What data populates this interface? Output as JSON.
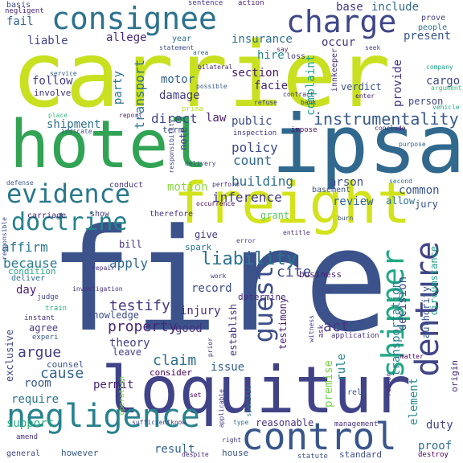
{
  "words": [
    {
      "text": "carrier",
      "color": "#c8e020"
    },
    {
      "text": "fire",
      "color": "#3b528b"
    },
    {
      "text": "hotel",
      "color": "#31a354"
    },
    {
      "text": "ipsa",
      "color": "#31688e"
    },
    {
      "text": "loquitur",
      "color": "#404387"
    },
    {
      "text": "freight",
      "color": "#d2e21b"
    },
    {
      "text": "consignee",
      "color": "#2c728e"
    },
    {
      "text": "negligence",
      "color": "#26828e"
    },
    {
      "text": "control",
      "color": "#39568c"
    },
    {
      "text": "evidence",
      "color": "#2a788e"
    },
    {
      "text": "doctrine",
      "color": "#26818e"
    },
    {
      "text": "charge",
      "color": "#3f4788"
    },
    {
      "text": "liability",
      "color": "#2c738e"
    },
    {
      "text": "guest",
      "color": "#3d4e8a"
    },
    {
      "text": "shipper",
      "color": "#22a785"
    },
    {
      "text": "denture",
      "color": "#414487"
    },
    {
      "text": "instrumentality",
      "color": "#38598c"
    },
    {
      "text": "policy",
      "color": "#3e4989"
    },
    {
      "text": "testify",
      "color": "#453781"
    },
    {
      "text": "property",
      "color": "#482878"
    },
    {
      "text": "cause",
      "color": "#32648e"
    },
    {
      "text": "claim",
      "color": "#2d708e"
    },
    {
      "text": "hire",
      "color": "#26828e"
    },
    {
      "text": "base",
      "color": "#443983"
    },
    {
      "text": "include",
      "color": "#31688e"
    },
    {
      "text": "insurance",
      "color": "#2e6e8e"
    },
    {
      "text": "occur",
      "color": "#46337e"
    },
    {
      "text": "present",
      "color": "#39558c"
    },
    {
      "text": "liable",
      "color": "#404688"
    },
    {
      "text": "allege",
      "color": "#482878"
    },
    {
      "text": "fail",
      "color": "#33638d"
    },
    {
      "text": "follow",
      "color": "#443a83"
    },
    {
      "text": "involve",
      "color": "#46327e"
    },
    {
      "text": "shipment",
      "color": "#2d708e"
    },
    {
      "text": "section",
      "color": "#48186a"
    },
    {
      "text": "complaint",
      "color": "#20a386"
    },
    {
      "text": "provide",
      "color": "#472d7b"
    },
    {
      "text": "verdict",
      "color": "#3b528b"
    },
    {
      "text": "cargo",
      "color": "#3e4989"
    },
    {
      "text": "person",
      "color": "#414487"
    },
    {
      "text": "motor",
      "color": "#35608d"
    },
    {
      "text": "damage",
      "color": "#433e85"
    },
    {
      "text": "direct",
      "color": "#3f4788"
    },
    {
      "text": "law",
      "color": "#481f70"
    },
    {
      "text": "public",
      "color": "#3e4a89"
    },
    {
      "text": "count",
      "color": "#31688e"
    },
    {
      "text": "building",
      "color": "#2e6f8e"
    },
    {
      "text": "inference",
      "color": "#443b84"
    },
    {
      "text": "motion",
      "color": "#8bd646"
    },
    {
      "text": "arson",
      "color": "#3e4989"
    },
    {
      "text": "common",
      "color": "#39568c"
    },
    {
      "text": "review",
      "color": "#30698e"
    },
    {
      "text": "affirm",
      "color": "#29798e"
    },
    {
      "text": "apply",
      "color": "#2f6b8e"
    },
    {
      "text": "because",
      "color": "#29798e"
    },
    {
      "text": "record",
      "color": "#3d4e8a"
    },
    {
      "text": "injury",
      "color": "#472e7c"
    },
    {
      "text": "good",
      "color": "#46317e"
    },
    {
      "text": "act",
      "color": "#453781"
    },
    {
      "text": "cite",
      "color": "#3f4889"
    },
    {
      "text": "decision",
      "color": "#3e4c8a"
    },
    {
      "text": "transportation",
      "color": "#287d8e"
    },
    {
      "text": "rule",
      "color": "#25848e"
    },
    {
      "text": "issue",
      "color": "#34618d"
    },
    {
      "text": "argue",
      "color": "#433d84"
    },
    {
      "text": "require",
      "color": "#2b748e"
    },
    {
      "text": "support",
      "color": "#2ab07f"
    },
    {
      "text": "room",
      "color": "#38598c"
    },
    {
      "text": "permit",
      "color": "#482374"
    },
    {
      "text": "theory",
      "color": "#424086"
    },
    {
      "text": "day",
      "color": "#481f70"
    },
    {
      "text": "result",
      "color": "#33638d"
    },
    {
      "text": "premise",
      "color": "#7ad151"
    },
    {
      "text": "proof",
      "color": "#2e6e8e"
    },
    {
      "text": "duty",
      "color": "#404688"
    },
    {
      "text": "element",
      "color": "#228d8d"
    },
    {
      "text": "exclusive",
      "color": "#3e4989"
    },
    {
      "text": "reasonable",
      "color": "#46327e"
    },
    {
      "text": "establish",
      "color": "#46307e"
    },
    {
      "text": "testimony",
      "color": "#481b6d"
    },
    {
      "text": "circumstance",
      "color": "#1fa187"
    },
    {
      "text": "authority",
      "color": "#3a548c"
    },
    {
      "text": "transport",
      "color": "#2d718e"
    },
    {
      "text": "party",
      "color": "#2e6f8e"
    },
    {
      "text": "general",
      "color": "#3f4788"
    },
    {
      "text": "however",
      "color": "#38598c"
    },
    {
      "text": "house",
      "color": "#39568c"
    },
    {
      "text": "standard",
      "color": "#3d4d8a"
    },
    {
      "text": "counsel",
      "color": "#3b518b"
    },
    {
      "text": "leave",
      "color": "#433e85"
    },
    {
      "text": "consider",
      "color": "#440154"
    },
    {
      "text": "bill",
      "color": "#46327e"
    },
    {
      "text": "give",
      "color": "#453882"
    },
    {
      "text": "spark",
      "color": "#2c728e"
    },
    {
      "text": "business",
      "color": "#482173"
    },
    {
      "text": "knowledge",
      "color": "#3e4c8a"
    },
    {
      "text": "agree",
      "color": "#443a83"
    },
    {
      "text": "deliver",
      "color": "#2e6e8e"
    },
    {
      "text": "condition",
      "color": "#26ad81"
    },
    {
      "text": "show",
      "color": "#433e85"
    },
    {
      "text": "therefore",
      "color": "#46327e"
    },
    {
      "text": "conduct",
      "color": "#46337e"
    },
    {
      "text": "carriage",
      "color": "#481f70"
    },
    {
      "text": "jury",
      "color": "#3b528b"
    },
    {
      "text": "origin",
      "color": "#482374"
    },
    {
      "text": "basement",
      "color": "#3b528b"
    },
    {
      "text": "allow",
      "color": "#2c728e"
    },
    {
      "text": "grant",
      "color": "#5ec962"
    },
    {
      "text": "term",
      "color": "#3f4788"
    },
    {
      "text": "note",
      "color": "#433d84"
    },
    {
      "text": "facie",
      "color": "#482677"
    },
    {
      "text": "prima",
      "color": "#b5de2b"
    },
    {
      "text": "innkeeper",
      "color": "#46327e"
    },
    {
      "text": "determine",
      "color": "#472d7b"
    },
    {
      "text": "basis",
      "color": "#3e4a89"
    },
    {
      "text": "negligent",
      "color": "#482475"
    },
    {
      "text": "sentence",
      "color": "#46307e"
    },
    {
      "text": "action",
      "color": "#481d6f"
    },
    {
      "text": "loss",
      "color": "#433e85"
    },
    {
      "text": "year",
      "color": "#2d708e"
    },
    {
      "text": "statement",
      "color": "#3e4c8a"
    },
    {
      "text": "area",
      "color": "#2f6c8e"
    },
    {
      "text": "bilateral",
      "color": "#472e7c"
    },
    {
      "text": "possible",
      "color": "#38598c"
    },
    {
      "text": "contract",
      "color": "#472c7a"
    },
    {
      "text": "service",
      "color": "#34618d"
    },
    {
      "text": "enter",
      "color": "#482576"
    },
    {
      "text": "prove",
      "color": "#433e85"
    },
    {
      "text": "people",
      "color": "#2d718e"
    },
    {
      "text": "company",
      "color": "#1f9e89"
    },
    {
      "text": "argument",
      "color": "#35b779"
    },
    {
      "text": "vehicle",
      "color": "#21a685"
    },
    {
      "text": "place",
      "color": "#35b779"
    },
    {
      "text": "indicate",
      "color": "#3b528b"
    },
    {
      "text": "report",
      "color": "#472a7a"
    },
    {
      "text": "refuse",
      "color": "#433e85"
    },
    {
      "text": "bank",
      "color": "#424186"
    },
    {
      "text": "inspection",
      "color": "#453781"
    },
    {
      "text": "impose",
      "color": "#471063"
    },
    {
      "text": "conclude",
      "color": "#482475"
    },
    {
      "text": "purpose",
      "color": "#31688e"
    },
    {
      "text": "responsibility",
      "color": "#414487"
    },
    {
      "text": "delivery",
      "color": "#3e4989"
    },
    {
      "text": "perform",
      "color": "#46307e"
    },
    {
      "text": "defense",
      "color": "#38598c"
    },
    {
      "text": "second",
      "color": "#2e6f8e"
    },
    {
      "text": "occurrence",
      "color": "#440154"
    },
    {
      "text": "burn",
      "color": "#3b528b"
    },
    {
      "text": "entitle",
      "color": "#46327e"
    },
    {
      "text": "error",
      "color": "#433e85"
    },
    {
      "text": "responsible",
      "color": "#3e4989"
    },
    {
      "text": "repair",
      "color": "#472d7b"
    },
    {
      "text": "investigation",
      "color": "#46307e"
    },
    {
      "text": "judge",
      "color": "#404688"
    },
    {
      "text": "train",
      "color": "#2ab07f"
    },
    {
      "text": "instant",
      "color": "#46327e"
    },
    {
      "text": "experi",
      "color": "#38598c"
    },
    {
      "text": "new",
      "color": "#3e4989"
    },
    {
      "text": "witness",
      "color": "#433e85"
    },
    {
      "text": "ask",
      "color": "#482475"
    },
    {
      "text": "application",
      "color": "#46327e"
    },
    {
      "text": "reason",
      "color": "#472d7b"
    },
    {
      "text": "matter",
      "color": "#440154"
    },
    {
      "text": "operation",
      "color": "#7ad151"
    },
    {
      "text": "specific",
      "color": "#2c728e"
    },
    {
      "text": "applicable",
      "color": "#453781"
    },
    {
      "text": "sufficient",
      "color": "#3e4989"
    },
    {
      "text": "know",
      "color": "#46327e"
    },
    {
      "text": "type",
      "color": "#2e6e8e"
    },
    {
      "text": "right",
      "color": "#433e85"
    },
    {
      "text": "management",
      "color": "#46327e"
    },
    {
      "text": "destroy",
      "color": "#440154"
    },
    {
      "text": "statute",
      "color": "#3b528b"
    },
    {
      "text": "despite",
      "color": "#472d7b"
    },
    {
      "text": "amend",
      "color": "#46307e"
    },
    {
      "text": "set",
      "color": "#440154"
    },
    {
      "text": "rely",
      "color": "#3b528b"
    },
    {
      "text": "prior",
      "color": "#433e85"
    },
    {
      "text": "work",
      "color": "#46327e"
    },
    {
      "text": "seek",
      "color": "#3e4989"
    },
    {
      "text": "say",
      "color": "#482475"
    }
  ]
}
